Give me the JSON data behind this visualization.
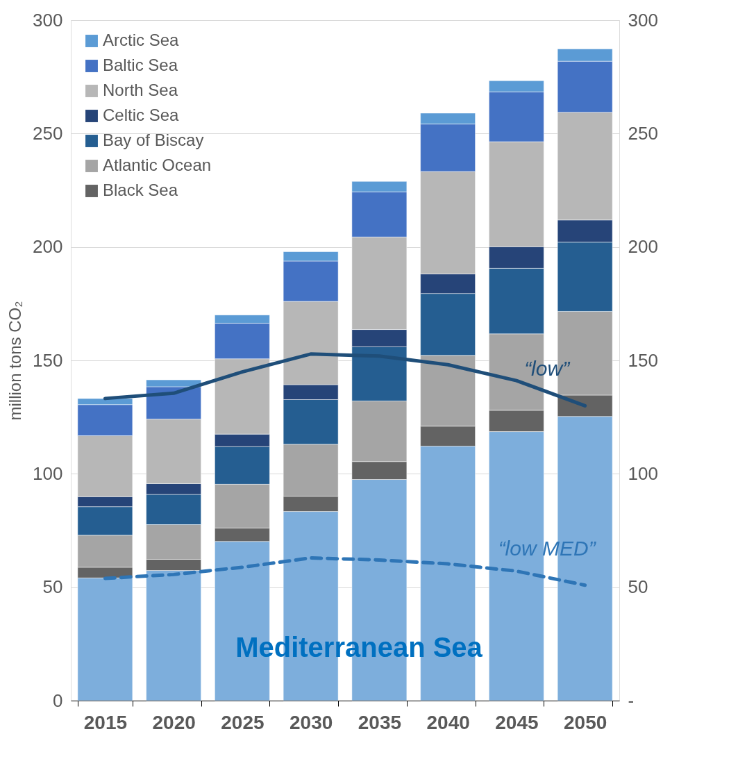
{
  "chart_data": {
    "type": "bar",
    "stacked": true,
    "ylabel": "million tons CO₂",
    "categories": [
      "2015",
      "2020",
      "2025",
      "2030",
      "2035",
      "2040",
      "2045",
      "2050"
    ],
    "ylim": [
      0,
      300
    ],
    "yticks": [
      0,
      50,
      100,
      150,
      200,
      250,
      300
    ],
    "y2lim": [
      0,
      300
    ],
    "y2ticks": [
      {
        "value": 0,
        "label": "-"
      },
      50,
      100,
      150,
      200,
      250,
      300
    ],
    "grid": "y",
    "legend": "top left",
    "series": [
      {
        "name": "Mediterranean Sea",
        "color": "#7daedc",
        "values": [
          54.1,
          57.4,
          70.2,
          83.4,
          97.5,
          112.2,
          118.6,
          125.3
        ]
      },
      {
        "name": "Black Sea",
        "color": "#636363",
        "values": [
          4.7,
          4.9,
          5.9,
          6.7,
          7.9,
          8.8,
          9.4,
          9.4
        ]
      },
      {
        "name": "Atlantic Ocean",
        "color": "#a5a5a5",
        "values": [
          14.1,
          15.3,
          19.3,
          22.9,
          26.7,
          31.2,
          33.7,
          36.9
        ]
      },
      {
        "name": "Bay of Biscay",
        "color": "#255e91",
        "values": [
          12.6,
          13.3,
          16.6,
          19.7,
          23.9,
          27.3,
          28.9,
          30.5
        ]
      },
      {
        "name": "Celtic Sea",
        "color": "#264478",
        "values": [
          4.4,
          4.8,
          5.5,
          6.6,
          7.6,
          8.6,
          9.5,
          9.8
        ]
      },
      {
        "name": "North Sea",
        "color": "#b7b7b7",
        "values": [
          26.9,
          28.4,
          33.2,
          36.7,
          40.8,
          45.2,
          46.3,
          47.5
        ]
      },
      {
        "name": "Baltic Sea",
        "color": "#4472c4",
        "values": [
          13.7,
          14.3,
          15.7,
          17.8,
          19.9,
          20.9,
          22.0,
          22.5
        ]
      },
      {
        "name": "Arctic Sea",
        "color": "#5b9bd5",
        "values": [
          2.7,
          3.0,
          3.6,
          4.1,
          4.6,
          4.8,
          4.9,
          5.4
        ]
      },
      {
        "name": "“low”",
        "type": "line",
        "color": "#1f4e79",
        "line_style": "solid",
        "values": [
          133.2,
          135.5,
          144.9,
          152.8,
          151.9,
          148.1,
          141.1,
          130.0
        ]
      },
      {
        "name": "“low MED”",
        "type": "line",
        "color": "#2e75b6",
        "line_style": "dashed",
        "values": [
          53.9,
          55.6,
          58.8,
          62.9,
          62.0,
          60.3,
          57.1,
          50.9
        ]
      }
    ]
  }
}
